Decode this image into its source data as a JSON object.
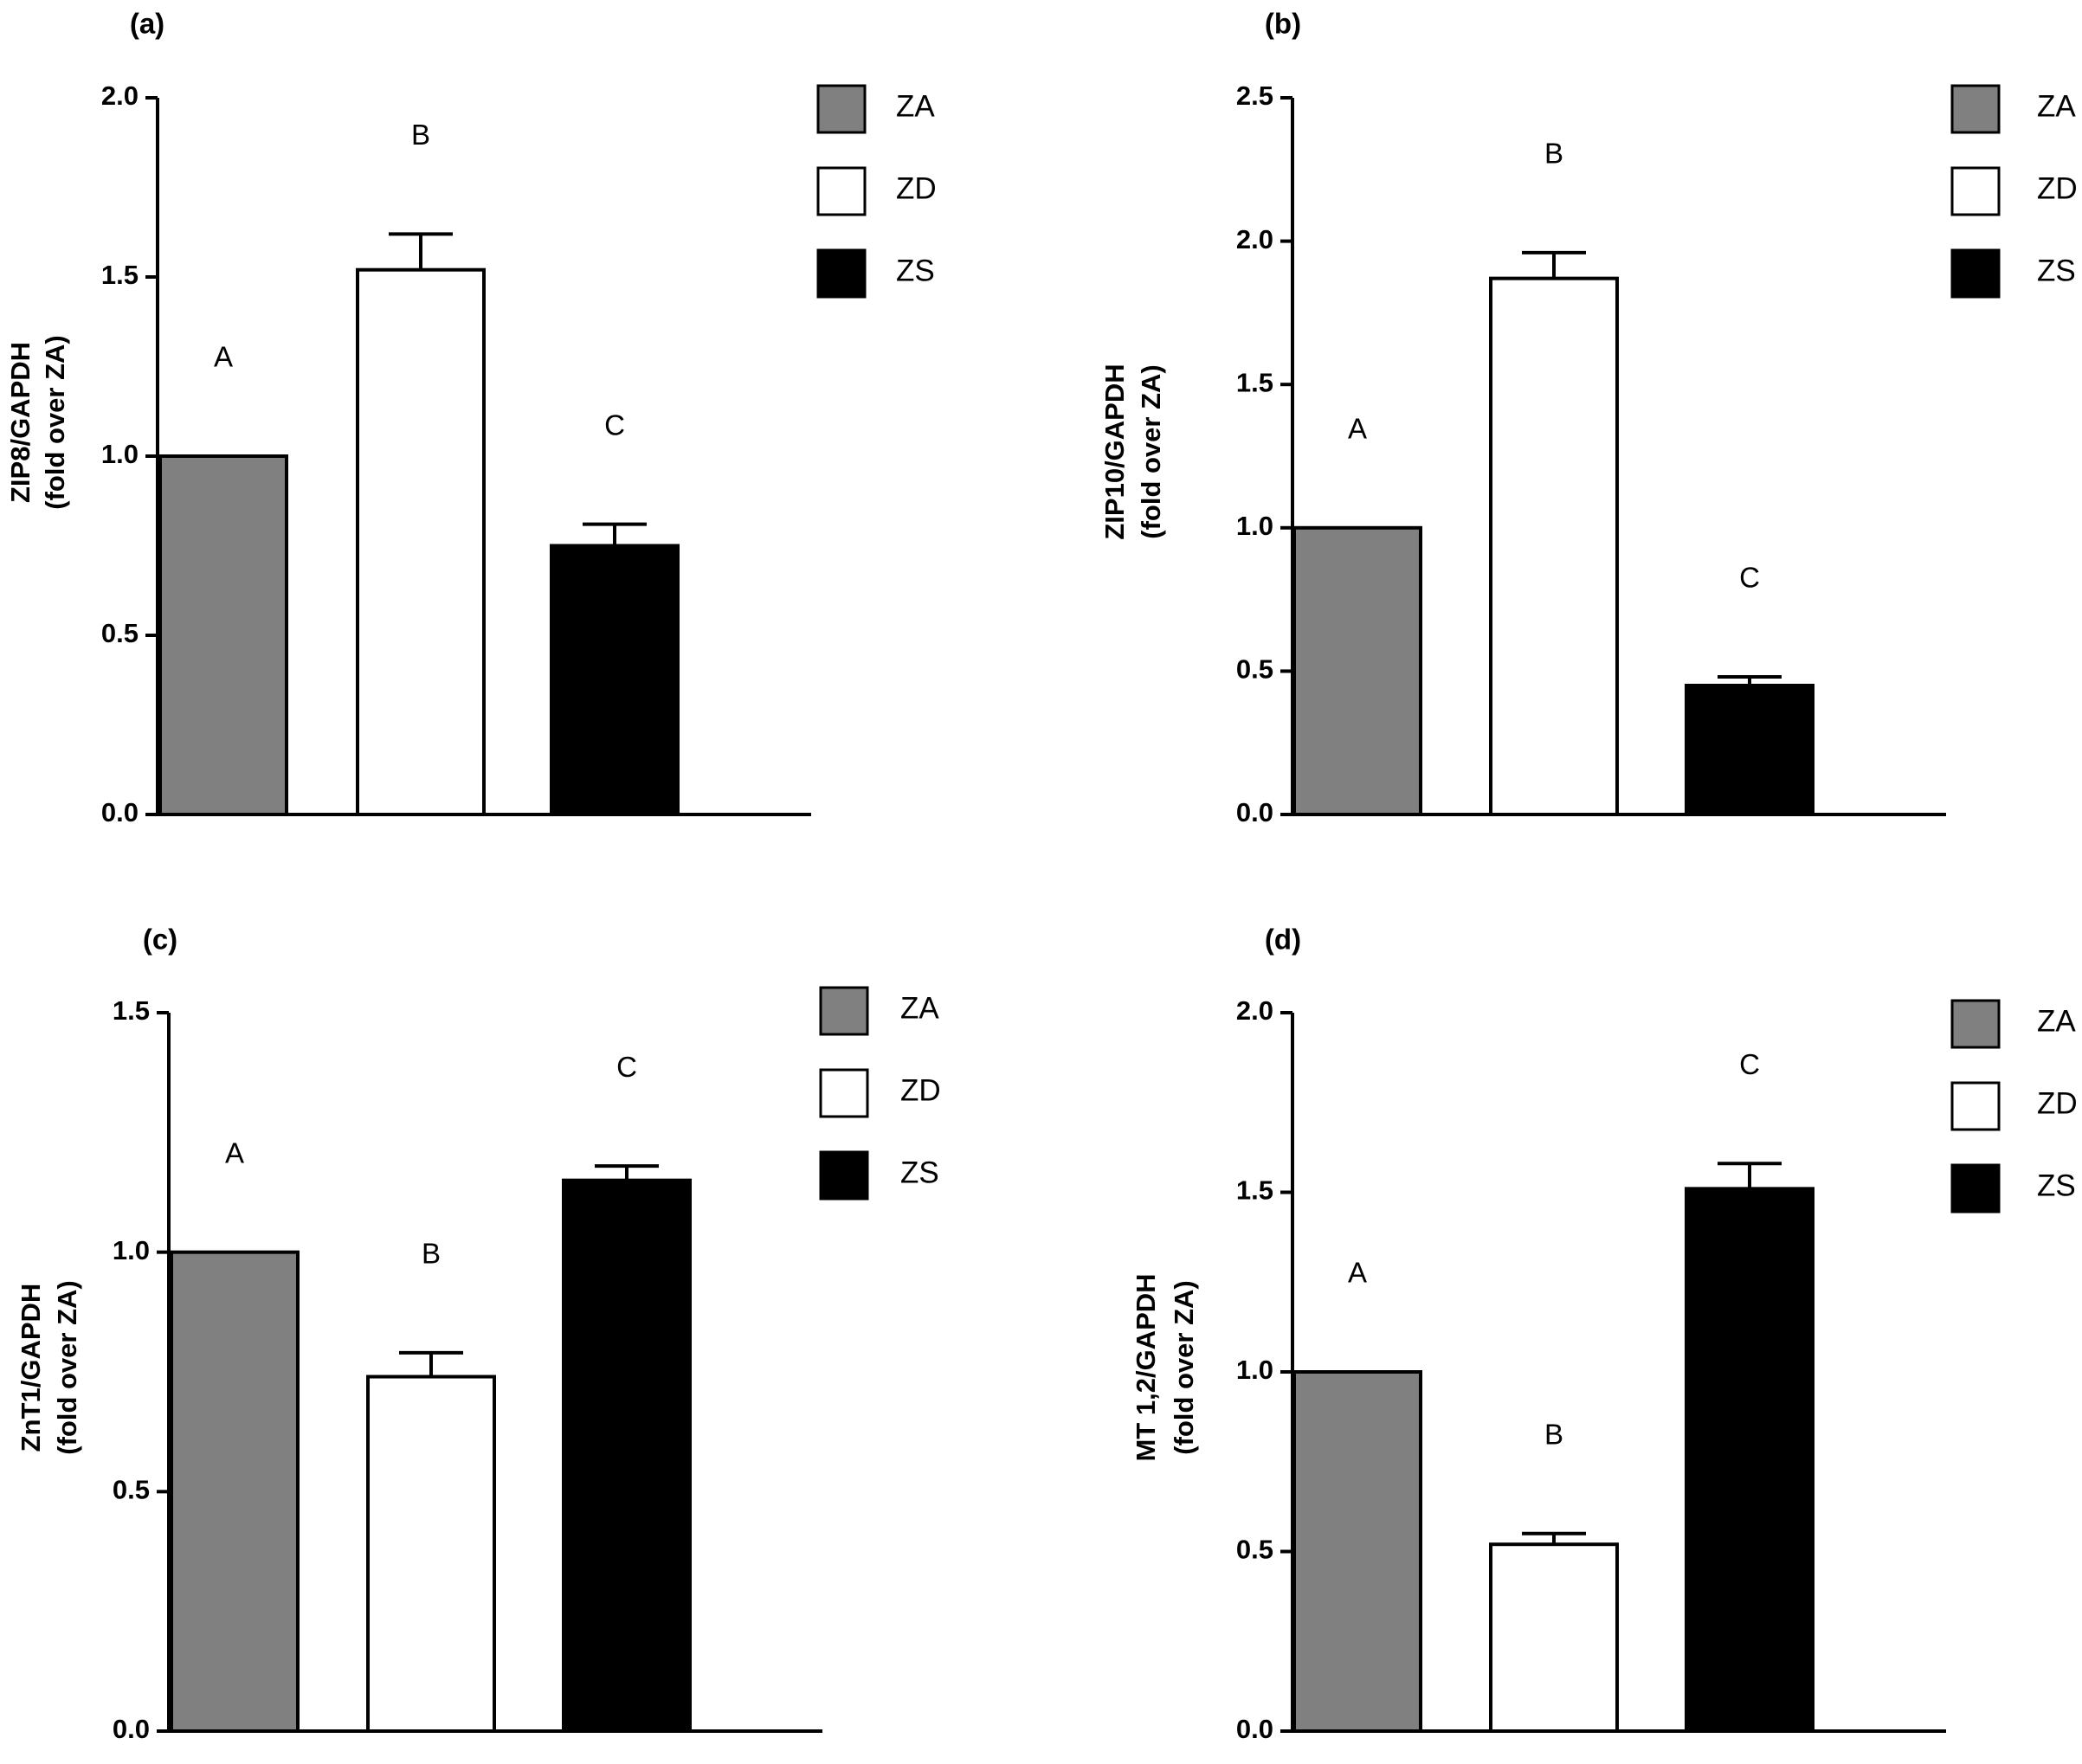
{
  "chart_data": [
    {
      "type": "bar",
      "panel": "(a)",
      "ylabel": [
        "ZIP8/GAPDH",
        "(fold over ZA)"
      ],
      "categories": [
        "ZA",
        "ZD",
        "ZS"
      ],
      "values": [
        1.0,
        1.52,
        0.75
      ],
      "errors": [
        0,
        0.1,
        0.06
      ],
      "letters": [
        "A",
        "B",
        "C"
      ],
      "ylim": [
        0,
        2.0
      ],
      "ticks": [
        "0.0",
        "0.5",
        "1.0",
        "1.5",
        "2.0"
      ],
      "legend": [
        "ZA",
        "ZD",
        "ZS"
      ]
    },
    {
      "type": "bar",
      "panel": "(b)",
      "ylabel": [
        "ZIP10/GAPDH",
        "(fold over ZA)"
      ],
      "categories": [
        "ZA",
        "ZD",
        "ZS"
      ],
      "values": [
        1.0,
        1.87,
        0.45
      ],
      "errors": [
        0,
        0.09,
        0.03
      ],
      "letters": [
        "A",
        "B",
        "C"
      ],
      "ylim": [
        0,
        2.5
      ],
      "ticks": [
        "0.0",
        "0.5",
        "1.0",
        "1.5",
        "2.0",
        "2.5"
      ],
      "legend": [
        "ZA",
        "ZD",
        "ZS"
      ]
    },
    {
      "type": "bar",
      "panel": "(c)",
      "ylabel": [
        "ZnT1/GAPDH",
        "(fold over ZA)"
      ],
      "categories": [
        "ZA",
        "ZD",
        "ZS"
      ],
      "values": [
        1.0,
        0.74,
        1.15
      ],
      "errors": [
        0,
        0.05,
        0.03
      ],
      "letters": [
        "A",
        "B",
        "C"
      ],
      "ylim": [
        0,
        1.5
      ],
      "ticks": [
        "0.0",
        "0.5",
        "1.0",
        "1.5"
      ],
      "legend": [
        "ZA",
        "ZD",
        "ZS"
      ]
    },
    {
      "type": "bar",
      "panel": "(d)",
      "ylabel": [
        "MT 1,2/GAPDH",
        "(fold over ZA)"
      ],
      "categories": [
        "ZA",
        "ZD",
        "ZS"
      ],
      "values": [
        1.0,
        0.52,
        1.51
      ],
      "errors": [
        0,
        0.03,
        0.07
      ],
      "letters": [
        "A",
        "B",
        "C"
      ],
      "ylim": [
        0,
        2.0
      ],
      "ticks": [
        "0.0",
        "0.5",
        "1.0",
        "1.5",
        "2.0"
      ],
      "legend": [
        "ZA",
        "ZD",
        "ZS"
      ]
    }
  ],
  "colors": {
    "ZA": "#808080",
    "ZD": "#ffffff",
    "ZS": "#000000",
    "stroke": "#000000"
  }
}
